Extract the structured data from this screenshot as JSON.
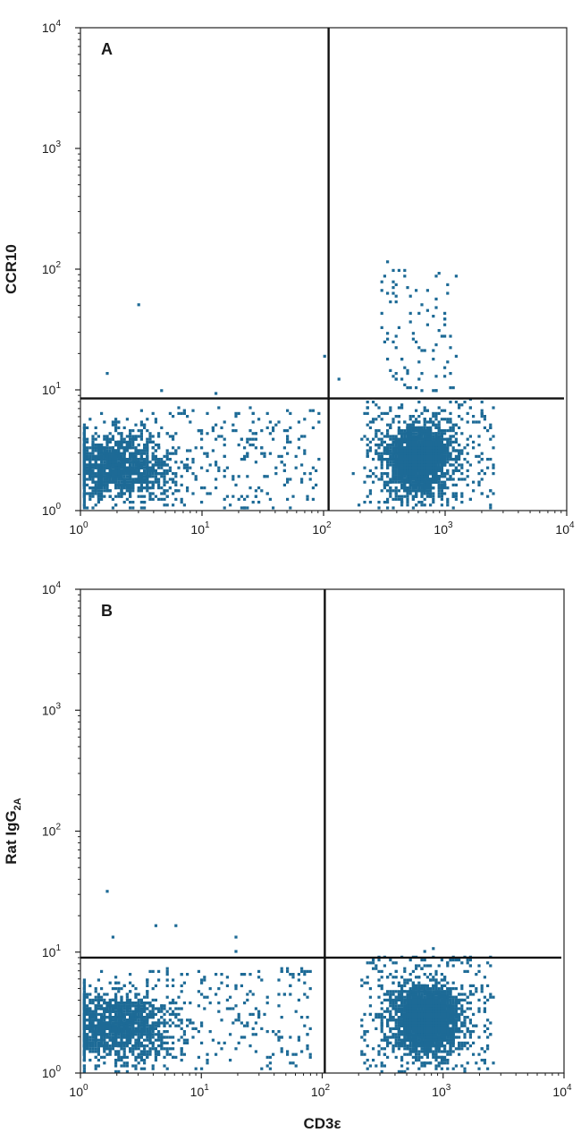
{
  "chart_data": [
    {
      "type": "scatter",
      "panel_label": "A",
      "xlabel": "",
      "ylabel": "CCR10",
      "x_scale": "log",
      "y_scale": "log",
      "xlim": [
        1,
        10000
      ],
      "ylim": [
        1,
        10000
      ],
      "x_ticks": [
        {
          "base": "10",
          "exp": "0"
        },
        {
          "base": "10",
          "exp": "1"
        },
        {
          "base": "10",
          "exp": "2"
        },
        {
          "base": "10",
          "exp": "3"
        },
        {
          "base": "10",
          "exp": "4"
        }
      ],
      "y_ticks": [
        {
          "base": "10",
          "exp": "0"
        },
        {
          "base": "10",
          "exp": "1"
        },
        {
          "base": "10",
          "exp": "2"
        },
        {
          "base": "10",
          "exp": "3"
        },
        {
          "base": "10",
          "exp": "4"
        }
      ],
      "quadrant_gate": {
        "x": 110,
        "y": 8.5
      },
      "point_color": "#1d6a96",
      "grid": false,
      "populations": [
        {
          "shape": "cluster",
          "center": [
            2,
            2.3
          ],
          "spread_log": [
            0.22,
            0.14
          ],
          "count": 1300
        },
        {
          "shape": "tail",
          "x_range": [
            3,
            90
          ],
          "y_range": [
            1,
            7
          ],
          "count": 260
        },
        {
          "shape": "cluster",
          "center": [
            600,
            2.6
          ],
          "spread_log": [
            0.13,
            0.14
          ],
          "count": 2000
        },
        {
          "shape": "halo",
          "x_range": [
            200,
            2500
          ],
          "y_range": [
            1,
            8
          ],
          "count": 320
        },
        {
          "shape": "sparse",
          "x_range": [
            280,
            1200
          ],
          "y_range": [
            9,
            110
          ],
          "count": 90
        }
      ],
      "outliers": [
        {
          "x": 3,
          "y": 50
        },
        {
          "x": 1.6,
          "y": 13
        },
        {
          "x": 4.5,
          "y": 9.5
        },
        {
          "x": 13,
          "y": 9.3
        },
        {
          "x": 98,
          "y": 18
        },
        {
          "x": 130,
          "y": 12
        },
        {
          "x": 330,
          "y": 115
        },
        {
          "x": 400,
          "y": 95
        }
      ]
    },
    {
      "type": "scatter",
      "panel_label": "B",
      "xlabel": "CD3ε",
      "ylabel": "Rat IgG",
      "ylabel_subscript": "2A",
      "x_scale": "log",
      "y_scale": "log",
      "xlim": [
        1,
        10000
      ],
      "ylim": [
        1,
        10000
      ],
      "x_ticks": [
        {
          "base": "10",
          "exp": "0"
        },
        {
          "base": "10",
          "exp": "1"
        },
        {
          "base": "10",
          "exp": "2"
        },
        {
          "base": "10",
          "exp": "3"
        },
        {
          "base": "10",
          "exp": "4"
        }
      ],
      "y_ticks": [
        {
          "base": "10",
          "exp": "0"
        },
        {
          "base": "10",
          "exp": "1"
        },
        {
          "base": "10",
          "exp": "2"
        },
        {
          "base": "10",
          "exp": "3"
        },
        {
          "base": "10",
          "exp": "4"
        }
      ],
      "quadrant_gate": {
        "x": 105,
        "y": 9
      },
      "point_color": "#1d6a96",
      "grid": false,
      "populations": [
        {
          "shape": "cluster",
          "center": [
            2,
            2.4
          ],
          "spread_log": [
            0.22,
            0.14
          ],
          "count": 1300
        },
        {
          "shape": "tail",
          "x_range": [
            3,
            80
          ],
          "y_range": [
            1,
            7
          ],
          "count": 240
        },
        {
          "shape": "cluster",
          "center": [
            700,
            2.7
          ],
          "spread_log": [
            0.14,
            0.14
          ],
          "count": 2100
        },
        {
          "shape": "halo",
          "x_range": [
            200,
            2500
          ],
          "y_range": [
            1,
            9
          ],
          "count": 330
        }
      ],
      "outliers": [
        {
          "x": 1.6,
          "y": 31
        },
        {
          "x": 1.8,
          "y": 13
        },
        {
          "x": 4.2,
          "y": 16
        },
        {
          "x": 6,
          "y": 16
        },
        {
          "x": 19,
          "y": 13
        },
        {
          "x": 19,
          "y": 10
        },
        {
          "x": 680,
          "y": 9.8
        },
        {
          "x": 800,
          "y": 10.5
        }
      ]
    }
  ]
}
